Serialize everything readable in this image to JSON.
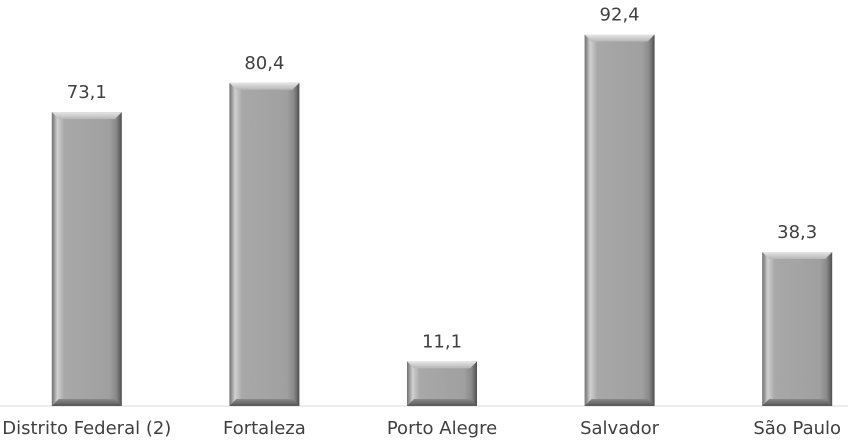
{
  "chart_data": {
    "type": "bar",
    "categories": [
      "Distrito Federal (2)",
      "Fortaleza",
      "Porto Alegre",
      "Salvador",
      "São Paulo"
    ],
    "values": [
      73.1,
      80.4,
      11.1,
      92.4,
      38.3
    ],
    "value_labels": [
      "73,1",
      "80,4",
      "11,1",
      "92,4",
      "38,3"
    ],
    "title": "",
    "xlabel": "",
    "ylabel": "",
    "ylim": [
      0,
      100
    ],
    "grid": false,
    "legend": "none",
    "colors": {
      "bar_fill": "#9e9e9e",
      "bar_light": "#d9d9d9",
      "bar_dark": "#5a5a5a",
      "baseline": "#d9d9d9",
      "text": "#404040"
    }
  }
}
